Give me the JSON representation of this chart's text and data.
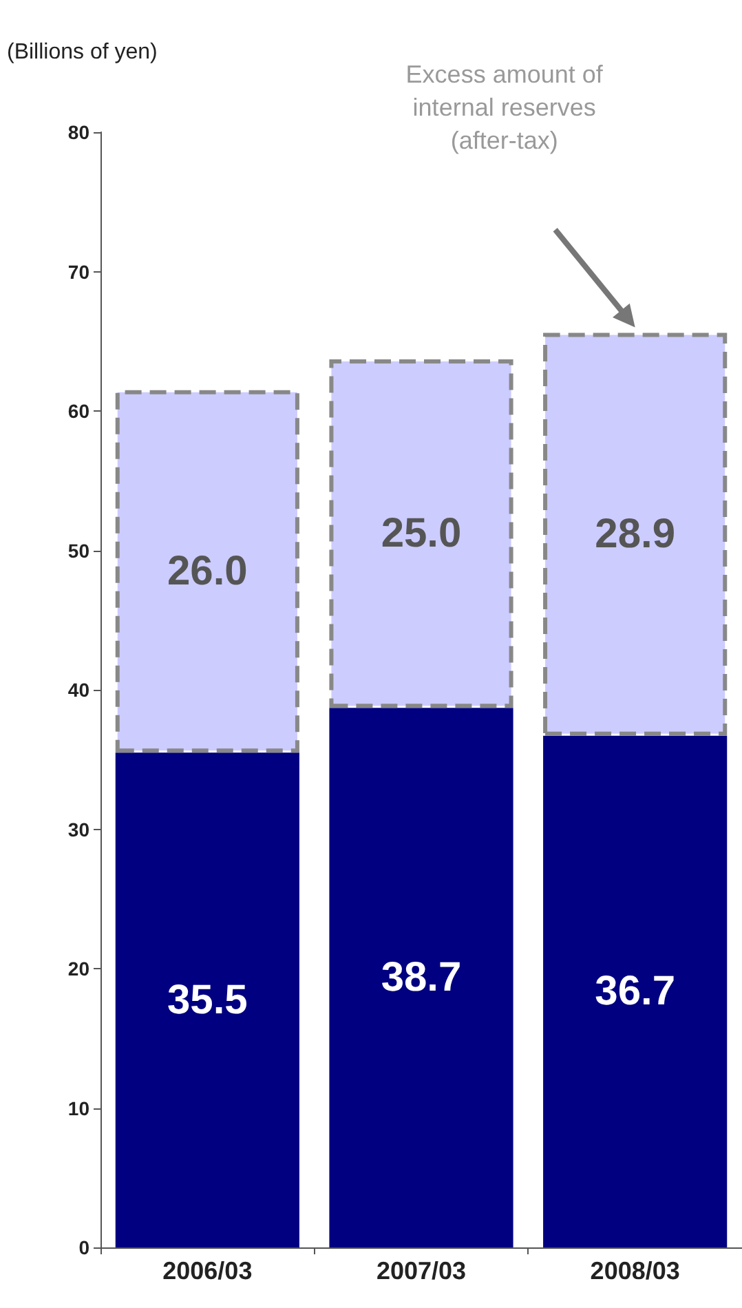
{
  "chart_data": {
    "type": "bar",
    "stacked": true,
    "ylabel": "(Billions of yen)",
    "categories": [
      "2006/03",
      "2007/03",
      "2008/03"
    ],
    "series": [
      {
        "color": "#000080",
        "values": [
          35.5,
          38.7,
          36.7
        ],
        "value_labels": [
          "35.5",
          "38.7",
          "36.7"
        ]
      },
      {
        "color": "#ccccff",
        "values": [
          26.0,
          25.0,
          28.9
        ],
        "value_labels": [
          "26.0",
          "25.0",
          "28.9"
        ],
        "line_style": "dashed"
      }
    ],
    "ylim": [
      0,
      80
    ],
    "yticks": [
      0,
      10,
      20,
      30,
      40,
      50,
      60,
      70,
      80
    ],
    "grid": false,
    "annotations": [
      "Excess amount of\ninternal reserves\n(after-tax)"
    ]
  }
}
